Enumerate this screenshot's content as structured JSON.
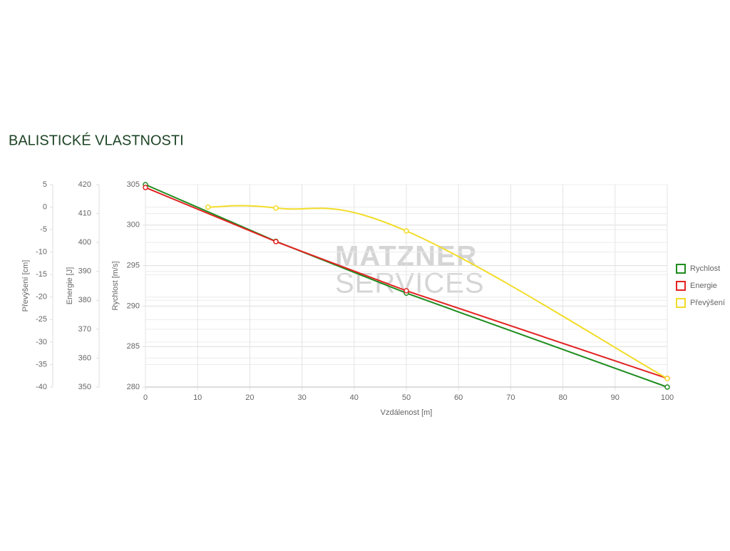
{
  "chart_data": {
    "type": "line",
    "title": "BALISTICKÉ VLASTNOSTI",
    "watermark": [
      "MATZNER",
      "SERVICES"
    ],
    "x_label": "Vzdálenost [m]",
    "xlim": [
      0,
      100
    ],
    "xticks": [
      0,
      10,
      20,
      30,
      40,
      50,
      60,
      70,
      80,
      90,
      100
    ],
    "y_label": "Rychlost [m/s]",
    "ylim": [
      280,
      305
    ],
    "yticks": [
      280,
      285,
      290,
      295,
      300,
      305
    ],
    "y2_label": "Energie [J]",
    "y2lim": [
      350,
      420
    ],
    "y2ticks": [
      350,
      360,
      370,
      380,
      390,
      400,
      410,
      420
    ],
    "y3_label": "Převýšení [cm]",
    "y3lim": [
      -40,
      5
    ],
    "y3ticks": [
      -40,
      -35,
      -30,
      -25,
      -20,
      -15,
      -10,
      -5,
      0,
      5
    ],
    "grid": true,
    "legend": "right",
    "series": [
      {
        "name": "Rychlost",
        "color": "#1e8c1e",
        "axis": "y",
        "x": [
          0,
          25,
          50,
          100
        ],
        "values": [
          305,
          298,
          291.6,
          280
        ]
      },
      {
        "name": "Energie",
        "color": "#e32222",
        "axis": "y2",
        "x": [
          0,
          25,
          50,
          100
        ],
        "values": [
          419,
          400.3,
          383.3,
          353
        ]
      },
      {
        "name": "Převýšení",
        "color": "#f2dc28",
        "axis": "y3",
        "x": [
          12,
          25,
          50,
          100
        ],
        "values": [
          0,
          -0.2,
          -5.3,
          -38.1
        ]
      }
    ]
  }
}
